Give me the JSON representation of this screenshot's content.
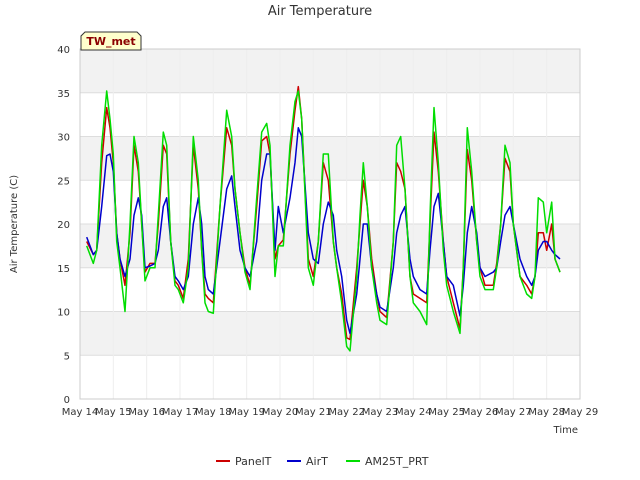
{
  "chart_data": {
    "type": "line",
    "title": "Air Temperature",
    "xlabel": "Time",
    "ylabel": "Air Temperature (C)",
    "ylim": [
      0,
      40
    ],
    "yticks": [
      0,
      5,
      10,
      15,
      20,
      25,
      30,
      35,
      40
    ],
    "xlim": [
      14,
      29
    ],
    "xticks": [
      {
        "x": 14,
        "label": "May 14"
      },
      {
        "x": 15,
        "label": "May 15"
      },
      {
        "x": 16,
        "label": "May 16"
      },
      {
        "x": 17,
        "label": "May 17"
      },
      {
        "x": 18,
        "label": "May 18"
      },
      {
        "x": 19,
        "label": "May 19"
      },
      {
        "x": 20,
        "label": "May 20"
      },
      {
        "x": 21,
        "label": "May 21"
      },
      {
        "x": 22,
        "label": "May 22"
      },
      {
        "x": 23,
        "label": "May 23"
      },
      {
        "x": 24,
        "label": "May 24"
      },
      {
        "x": 25,
        "label": "May 25"
      },
      {
        "x": 26,
        "label": "May 26"
      },
      {
        "x": 27,
        "label": "May 27"
      },
      {
        "x": 28,
        "label": "May 28"
      },
      {
        "x": 29,
        "label": "May 29"
      }
    ],
    "grid": true,
    "background_bands": true,
    "legend_position": "bottom",
    "station_badge": "TW_met",
    "series": [
      {
        "name": "PanelT",
        "color": "#cc0000",
        "x": [
          14.2,
          14.4,
          14.5,
          14.65,
          14.8,
          14.9,
          15.0,
          15.1,
          15.2,
          15.35,
          15.5,
          15.62,
          15.75,
          15.85,
          15.95,
          16.1,
          16.25,
          16.35,
          16.5,
          16.6,
          16.72,
          16.85,
          16.95,
          17.1,
          17.25,
          17.4,
          17.55,
          17.65,
          17.75,
          17.85,
          18.0,
          18.2,
          18.4,
          18.55,
          18.65,
          18.8,
          18.95,
          19.1,
          19.3,
          19.45,
          19.6,
          19.7,
          19.85,
          19.95,
          20.1,
          20.3,
          20.45,
          20.55,
          20.65,
          20.85,
          21.0,
          21.15,
          21.3,
          21.45,
          21.6,
          21.7,
          21.85,
          22.0,
          22.1,
          22.3,
          22.4,
          22.5,
          22.62,
          22.75,
          22.9,
          23.0,
          23.2,
          23.4,
          23.5,
          23.62,
          23.75,
          23.9,
          24.0,
          24.2,
          24.4,
          24.5,
          24.62,
          24.75,
          24.9,
          25.0,
          25.2,
          25.4,
          25.5,
          25.62,
          25.75,
          25.9,
          26.0,
          26.15,
          26.4,
          26.5,
          26.62,
          26.75,
          26.9,
          27.0,
          27.2,
          27.4,
          27.55,
          27.65,
          27.75,
          27.9,
          28.0,
          28.15,
          28.25,
          28.4
        ],
        "y": [
          18,
          16.5,
          17,
          27,
          33.3,
          31,
          27,
          19,
          16,
          13,
          19,
          29,
          26,
          20,
          14.5,
          15.5,
          15.5,
          20,
          29,
          28,
          18,
          13.5,
          13,
          11.5,
          16,
          29,
          24,
          17,
          12,
          11.5,
          11,
          22,
          31,
          29,
          24,
          19,
          15,
          13,
          22,
          29.5,
          30,
          28,
          16,
          17.5,
          18.2,
          28,
          33,
          35.7,
          32,
          16,
          14,
          18,
          27,
          25,
          18,
          15,
          12,
          7,
          6.8,
          15,
          20,
          25,
          22,
          16,
          12,
          10,
          9.3,
          18,
          27,
          26,
          24,
          14,
          12,
          11.5,
          11,
          20,
          30.5,
          26,
          18,
          14,
          11,
          8,
          15,
          28.5,
          25,
          18,
          15,
          13,
          13,
          15.5,
          20,
          27.5,
          26,
          20,
          14,
          13,
          12,
          14,
          19,
          19,
          17,
          20,
          16,
          14.5
        ]
      },
      {
        "name": "AirT",
        "color": "#0000cc",
        "x": [
          14.2,
          14.4,
          14.5,
          14.65,
          14.8,
          14.9,
          15.0,
          15.1,
          15.2,
          15.35,
          15.5,
          15.62,
          15.75,
          15.85,
          15.95,
          16.1,
          16.25,
          16.35,
          16.5,
          16.6,
          16.72,
          16.85,
          16.95,
          17.1,
          17.25,
          17.4,
          17.55,
          17.65,
          17.75,
          17.85,
          18.0,
          18.2,
          18.4,
          18.55,
          18.65,
          18.8,
          18.95,
          19.1,
          19.3,
          19.45,
          19.6,
          19.7,
          19.85,
          19.95,
          20.1,
          20.3,
          20.45,
          20.55,
          20.65,
          20.85,
          21.0,
          21.15,
          21.3,
          21.45,
          21.6,
          21.7,
          21.85,
          22.0,
          22.1,
          22.3,
          22.4,
          22.5,
          22.62,
          22.75,
          22.9,
          23.0,
          23.2,
          23.4,
          23.5,
          23.62,
          23.75,
          23.9,
          24.0,
          24.2,
          24.4,
          24.5,
          24.62,
          24.75,
          24.9,
          25.0,
          25.2,
          25.4,
          25.5,
          25.62,
          25.75,
          25.9,
          26.0,
          26.15,
          26.4,
          26.5,
          26.62,
          26.75,
          26.9,
          27.0,
          27.2,
          27.4,
          27.55,
          27.65,
          27.75,
          27.9,
          28.0,
          28.15,
          28.25,
          28.4
        ],
        "y": [
          18.5,
          16.5,
          17,
          22,
          27.8,
          28,
          26,
          19,
          16,
          14,
          16,
          21,
          23,
          21,
          15,
          15.2,
          15.5,
          17,
          22,
          23,
          18,
          14,
          13.5,
          12.5,
          14,
          20,
          23,
          20,
          14,
          12.5,
          12,
          18,
          24,
          25.5,
          22,
          17,
          15,
          14,
          18,
          25,
          28,
          28,
          17,
          22,
          19,
          23,
          27,
          31,
          30,
          19,
          16,
          15.5,
          20,
          22.5,
          21,
          17,
          14,
          9,
          7.5,
          12,
          16,
          20,
          20,
          15,
          12,
          10.5,
          10,
          15,
          19,
          21,
          22,
          16,
          14,
          12.5,
          12,
          17,
          22,
          23.5,
          18,
          14,
          13,
          9.5,
          13,
          19,
          22,
          19,
          15,
          14,
          14.5,
          15,
          18,
          21,
          22,
          20,
          16,
          14,
          13,
          14,
          17,
          18,
          18,
          17,
          16.5,
          16
        ]
      },
      {
        "name": "AM25T_PRT",
        "color": "#00dd00",
        "x": [
          14.2,
          14.4,
          14.5,
          14.65,
          14.8,
          14.9,
          15.0,
          15.1,
          15.2,
          15.35,
          15.5,
          15.62,
          15.75,
          15.85,
          15.95,
          16.1,
          16.25,
          16.35,
          16.5,
          16.6,
          16.72,
          16.85,
          16.95,
          17.1,
          17.25,
          17.4,
          17.55,
          17.65,
          17.75,
          17.85,
          18.0,
          18.2,
          18.4,
          18.55,
          18.65,
          18.8,
          18.95,
          19.1,
          19.3,
          19.45,
          19.6,
          19.7,
          19.85,
          19.95,
          20.1,
          20.3,
          20.45,
          20.55,
          20.65,
          20.85,
          21.0,
          21.15,
          21.3,
          21.45,
          21.6,
          21.7,
          21.85,
          22.0,
          22.1,
          22.3,
          22.4,
          22.5,
          22.62,
          22.75,
          22.9,
          23.0,
          23.2,
          23.4,
          23.5,
          23.62,
          23.75,
          23.9,
          24.0,
          24.2,
          24.4,
          24.5,
          24.62,
          24.75,
          24.9,
          25.0,
          25.2,
          25.4,
          25.5,
          25.62,
          25.75,
          25.9,
          26.0,
          26.15,
          26.4,
          26.5,
          26.62,
          26.75,
          26.9,
          27.0,
          27.2,
          27.4,
          27.55,
          27.65,
          27.75,
          27.9,
          28.0,
          28.15,
          28.25,
          28.4
        ],
        "y": [
          17.5,
          15.5,
          17,
          29,
          35.2,
          32,
          28,
          18,
          15,
          10,
          20,
          30,
          27,
          20,
          13.5,
          15,
          15,
          21,
          30.5,
          29,
          18,
          13,
          12.5,
          11,
          15,
          30,
          25,
          17,
          11,
          10,
          9.8,
          22,
          33,
          30,
          24,
          19,
          14.5,
          12.5,
          23,
          30.5,
          31.5,
          29,
          14,
          17.5,
          17.5,
          29,
          34,
          35.2,
          32,
          15,
          13,
          18,
          28,
          28,
          18,
          15,
          11,
          6,
          5.5,
          14,
          21,
          27,
          22,
          15,
          11,
          9,
          8.5,
          18,
          29,
          30,
          24,
          14,
          11,
          10,
          8.5,
          21,
          33.3,
          27,
          17,
          13,
          10,
          7.5,
          15,
          31,
          26,
          18,
          14,
          12.5,
          12.5,
          15,
          20,
          29,
          27,
          20,
          14,
          12,
          11.5,
          14,
          23,
          22.5,
          19,
          22.5,
          16,
          14.5
        ]
      }
    ]
  }
}
